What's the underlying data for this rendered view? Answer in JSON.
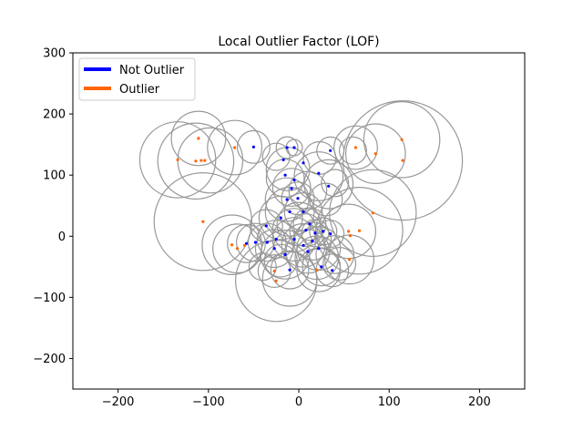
{
  "colors": {
    "inlier": "#0000ff",
    "outlier": "#ff6600",
    "ring": "#999999"
  },
  "chart_data": {
    "type": "scatter",
    "title": "Local Outlier Factor (LOF)",
    "xlabel": "",
    "ylabel": "",
    "xlim": [
      -250,
      250
    ],
    "ylim": [
      -250,
      300
    ],
    "x_ticks": [
      -200,
      -100,
      0,
      100,
      200
    ],
    "y_ticks": [
      -200,
      -100,
      0,
      100,
      200,
      300
    ],
    "x_tick_labels": [
      "−200",
      "−100",
      "0",
      "100",
      "200"
    ],
    "y_tick_labels": [
      "−200",
      "−100",
      "0",
      "100",
      "200",
      "300"
    ],
    "grid": false,
    "legend": {
      "position": "top-left",
      "entries": [
        "Not Outlier",
        "Outlier"
      ]
    },
    "series": [
      {
        "name": "Not Outlier",
        "points": [
          [
            -50,
            146
          ],
          [
            -13,
            145
          ],
          [
            -5,
            145
          ],
          [
            35,
            140
          ],
          [
            -17,
            125
          ],
          [
            5,
            120
          ],
          [
            -15,
            100
          ],
          [
            -5,
            92
          ],
          [
            22,
            103
          ],
          [
            33,
            82
          ],
          [
            -8,
            78
          ],
          [
            -13,
            60
          ],
          [
            -1,
            62
          ],
          [
            -10,
            40
          ],
          [
            -20,
            30
          ],
          [
            -36,
            17
          ],
          [
            5,
            40
          ],
          [
            12,
            20
          ],
          [
            8,
            10
          ],
          [
            18,
            5
          ],
          [
            27,
            8
          ],
          [
            35,
            4
          ],
          [
            -25,
            -5
          ],
          [
            -35,
            -10
          ],
          [
            -48,
            -10
          ],
          [
            -58,
            -12
          ],
          [
            -5,
            -5
          ],
          [
            5,
            -15
          ],
          [
            10,
            -25
          ],
          [
            22,
            -20
          ],
          [
            -15,
            -30
          ],
          [
            -10,
            -55
          ],
          [
            37,
            -56
          ],
          [
            25,
            -50
          ],
          [
            -27,
            -20
          ],
          [
            15,
            -8
          ]
        ]
      },
      {
        "name": "Outlier",
        "points": [
          [
            -111,
            160
          ],
          [
            114,
            158
          ],
          [
            -71,
            145
          ],
          [
            63,
            145
          ],
          [
            -134,
            125
          ],
          [
            -114,
            123
          ],
          [
            -108,
            124
          ],
          [
            -104,
            124
          ],
          [
            85,
            135
          ],
          [
            115,
            124
          ],
          [
            -106,
            24
          ],
          [
            82,
            38
          ],
          [
            67,
            9
          ],
          [
            -74,
            -14
          ],
          [
            -68,
            -20
          ],
          [
            55,
            8
          ],
          [
            56,
            -38
          ],
          [
            -27,
            -57
          ],
          [
            -25,
            -73
          ],
          [
            57,
            1
          ],
          [
            -60,
            -15
          ],
          [
            20,
            -55
          ]
        ]
      }
    ],
    "lof_scores": {
      "note_units": "circle radius proportional to outlier score",
      "rings": [
        [
          -111,
          160,
          0.1
        ],
        [
          114,
          158,
          0.14
        ],
        [
          115,
          124,
          0.22
        ],
        [
          -106,
          24,
          0.18
        ],
        [
          82,
          38,
          0.16
        ],
        [
          -134,
          125,
          0.14
        ],
        [
          -114,
          123,
          0.14
        ],
        [
          -98,
          124,
          0.12
        ],
        [
          85,
          135,
          0.11
        ],
        [
          -71,
          145,
          0.1
        ],
        [
          63,
          145,
          0.08
        ],
        [
          -74,
          -14,
          0.11
        ],
        [
          -68,
          -20,
          0.09
        ],
        [
          56,
          -38,
          0.09
        ],
        [
          -25,
          -73,
          0.15
        ],
        [
          -10,
          -70,
          0.1
        ],
        [
          67,
          9,
          0.16
        ],
        [
          55,
          8,
          0.1
        ],
        [
          -27,
          -57,
          0.06
        ],
        [
          22,
          -55,
          0.08
        ],
        [
          -50,
          146,
          0.06
        ],
        [
          60,
          140,
          0.05
        ],
        [
          -13,
          145,
          0.04
        ],
        [
          -5,
          145,
          0.03
        ],
        [
          35,
          140,
          0.05
        ],
        [
          23,
          128,
          0.06
        ],
        [
          -12,
          110,
          0.08
        ],
        [
          -15,
          95,
          0.07
        ],
        [
          22,
          98,
          0.09
        ],
        [
          33,
          85,
          0.09
        ],
        [
          40,
          87,
          0.05
        ],
        [
          -8,
          80,
          0.07
        ],
        [
          10,
          75,
          0.07
        ],
        [
          -13,
          60,
          0.08
        ],
        [
          -1,
          62,
          0.06
        ],
        [
          -10,
          40,
          0.09
        ],
        [
          -20,
          30,
          0.08
        ],
        [
          -36,
          17,
          0.06
        ],
        [
          5,
          40,
          0.07
        ],
        [
          12,
          20,
          0.06
        ],
        [
          8,
          10,
          0.06
        ],
        [
          18,
          5,
          0.05
        ],
        [
          27,
          8,
          0.05
        ],
        [
          35,
          4,
          0.05
        ],
        [
          -25,
          -5,
          0.07
        ],
        [
          -35,
          -10,
          0.07
        ],
        [
          -48,
          -10,
          0.07
        ],
        [
          -58,
          -12,
          0.07
        ],
        [
          -5,
          -5,
          0.08
        ],
        [
          5,
          -15,
          0.08
        ],
        [
          10,
          -25,
          0.08
        ],
        [
          22,
          -20,
          0.08
        ],
        [
          -15,
          -30,
          0.09
        ],
        [
          -10,
          -55,
          0.07
        ],
        [
          37,
          -56,
          0.06
        ],
        [
          25,
          -50,
          0.07
        ],
        [
          -27,
          -20,
          0.07
        ],
        [
          15,
          -8,
          0.07
        ],
        [
          0,
          20,
          0.08
        ],
        [
          -5,
          10,
          0.08
        ],
        [
          20,
          -35,
          0.08
        ],
        [
          -20,
          -40,
          0.06
        ],
        [
          40,
          -30,
          0.07
        ],
        [
          -40,
          -50,
          0.05
        ],
        [
          30,
          60,
          0.06
        ],
        [
          -25,
          130,
          0.05
        ],
        [
          45,
          -45,
          0.06
        ]
      ]
    },
    "ring_scale": 300
  }
}
